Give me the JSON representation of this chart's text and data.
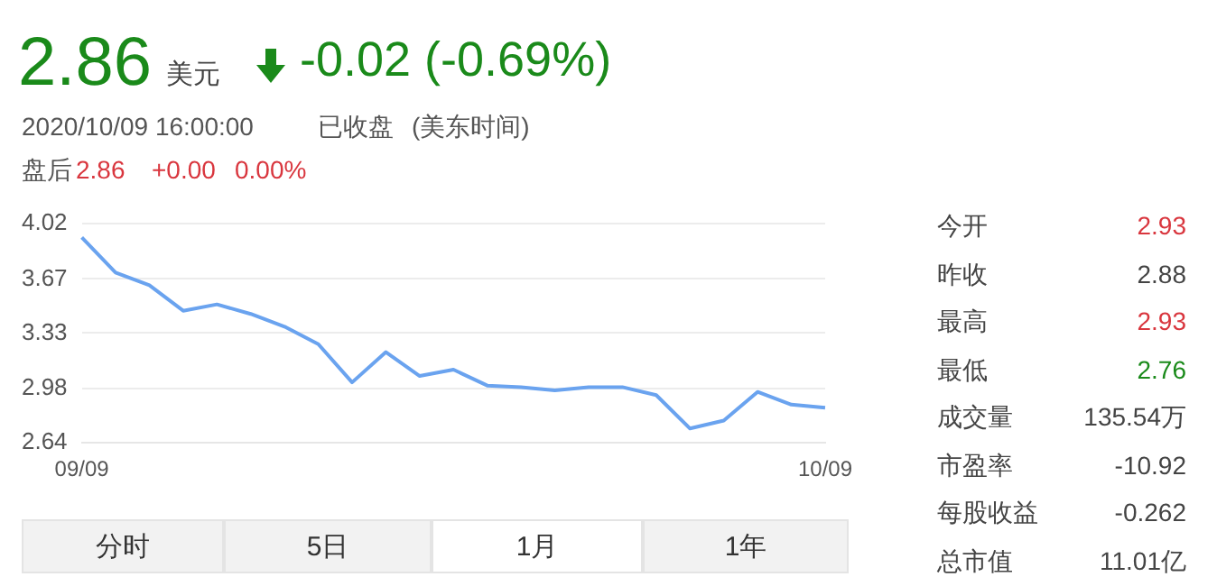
{
  "chart_data": {
    "type": "line",
    "categories": [
      "09/09",
      null,
      null,
      null,
      null,
      null,
      null,
      null,
      null,
      null,
      null,
      null,
      null,
      null,
      null,
      null,
      null,
      null,
      null,
      null,
      null,
      null,
      "10/09"
    ],
    "series": [
      {
        "color": "#6aa3ef",
        "values": [
          3.93,
          3.71,
          3.63,
          3.47,
          3.51,
          3.45,
          3.37,
          3.26,
          3.02,
          3.21,
          3.06,
          3.1,
          3.0,
          2.99,
          2.97,
          2.99,
          2.99,
          2.94,
          2.73,
          2.78,
          2.96,
          2.88,
          2.86
        ]
      }
    ],
    "ylim": [
      2.64,
      4.02
    ],
    "yticks": [
      2.64,
      2.98,
      3.33,
      3.67,
      4.02
    ],
    "grid": "y",
    "annotations": [
      "2.86",
      "美元",
      "-0.02 (-0.69%)",
      "2020/10/09 16:00:00",
      "已收盘",
      "(美东时间)",
      "盘后",
      "2.86",
      "+0.00",
      "0.00%",
      "今开",
      "2.93",
      "昨收",
      "2.88",
      "最高",
      "2.93",
      "最低",
      "2.76",
      "成交量",
      "135.54万",
      "市盈率",
      "-10.92",
      "每股收益",
      "-0.262",
      "总市值",
      "11.01亿",
      "分时",
      "5日",
      "1月",
      "1年"
    ]
  }
}
